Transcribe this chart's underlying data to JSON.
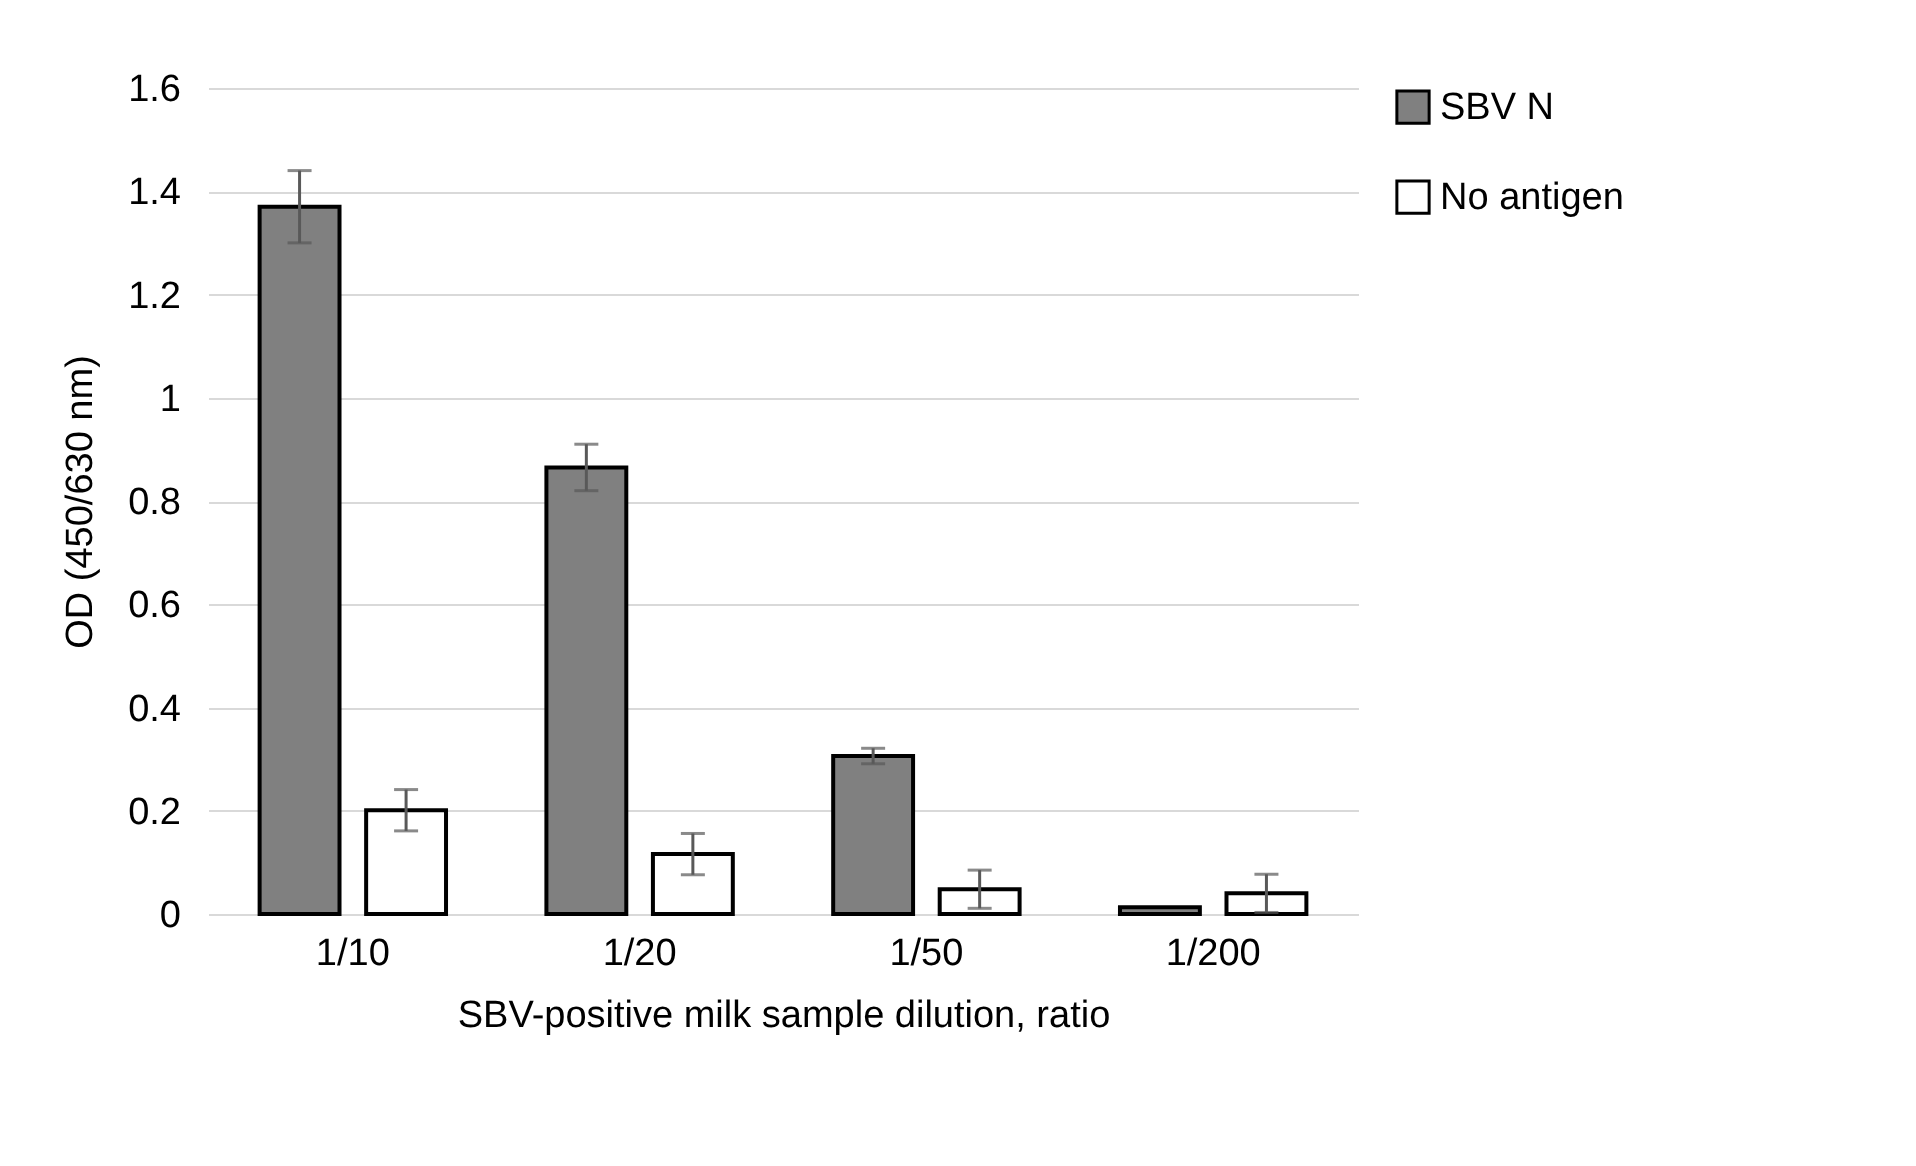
{
  "chart_data": {
    "type": "bar",
    "xlabel": "SBV-positive milk sample dilution, ratio",
    "ylabel": "OD (450/630 nm)",
    "categories": [
      "1/10",
      "1/20",
      "1/50",
      "1/200"
    ],
    "series": [
      {
        "name": "SBV N",
        "color": "#808080",
        "values": [
          1.37,
          0.865,
          0.306,
          0.013
        ],
        "errors": [
          0.07,
          0.045,
          0.015,
          null
        ]
      },
      {
        "name": "No antigen",
        "color": "#ffffff",
        "values": [
          0.201,
          0.116,
          0.048,
          0.04
        ],
        "errors": [
          0.04,
          0.04,
          0.037,
          0.037
        ]
      }
    ],
    "ylim": [
      0,
      1.6
    ],
    "yticks": [
      0,
      0.2,
      0.4,
      0.6,
      0.8,
      1,
      1.2,
      1.4,
      1.6
    ],
    "grid": "y",
    "legend": "right"
  }
}
